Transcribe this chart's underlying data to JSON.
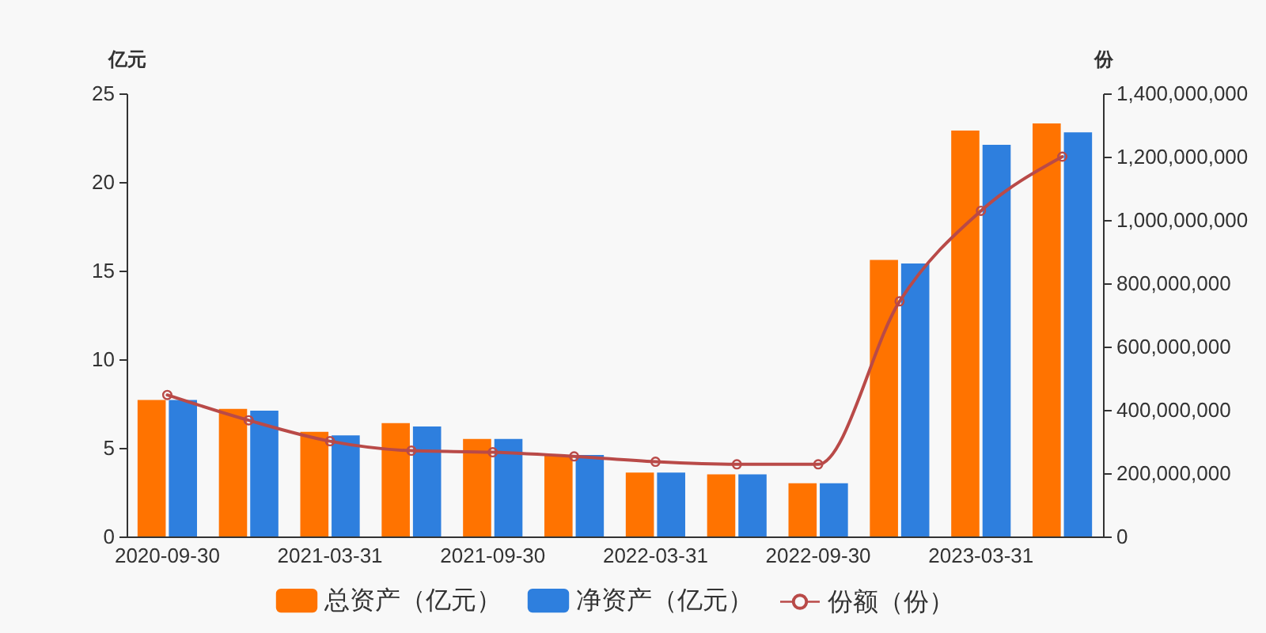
{
  "chart_data": {
    "type": "bar",
    "ylabel": "亿元",
    "y2label": "份",
    "categories": [
      "2020-09-30",
      null,
      "2021-03-31",
      null,
      "2021-09-30",
      null,
      "2022-03-31",
      null,
      "2022-09-30",
      null,
      "2023-03-31",
      null
    ],
    "series": [
      {
        "name": "总资产（亿元）",
        "color": "#ff7300",
        "values": [
          7.7,
          7.2,
          5.9,
          6.4,
          5.5,
          4.6,
          3.6,
          3.5,
          3.0,
          15.6,
          22.9,
          23.3
        ]
      },
      {
        "name": "净资产（亿元）",
        "color": "#2e7fde",
        "values": [
          7.7,
          7.1,
          5.7,
          6.2,
          5.5,
          4.6,
          3.6,
          3.5,
          3.0,
          15.4,
          22.1,
          22.8
        ]
      },
      {
        "name": "份额（份）",
        "type": "line",
        "axis": "y2",
        "color": "#b94a48",
        "values": [
          447000000,
          367000000,
          301000000,
          271000000,
          266000000,
          253000000,
          236000000,
          228000000,
          228000000,
          743000000,
          1029000000,
          1200000000
        ]
      }
    ],
    "ylim": [
      0,
      25
    ],
    "yticks": [
      0,
      5,
      10,
      15,
      20,
      25
    ],
    "y2lim": [
      0,
      1400000000
    ],
    "y2ticks": [
      0,
      {
        "value": 200000000,
        "label": "200,000,000"
      },
      {
        "value": 400000000,
        "label": "400,000,000"
      },
      {
        "value": 600000000,
        "label": "600,000,000"
      },
      {
        "value": 800000000,
        "label": "800,000,000"
      },
      {
        "value": 1000000000,
        "label": "1,000,000,000"
      },
      {
        "value": 1200000000,
        "label": "1,200,000,000"
      },
      {
        "value": 1400000000,
        "label": "1,400,000,000"
      }
    ],
    "grid": false,
    "legend": "bottom",
    "marker": "circle"
  }
}
